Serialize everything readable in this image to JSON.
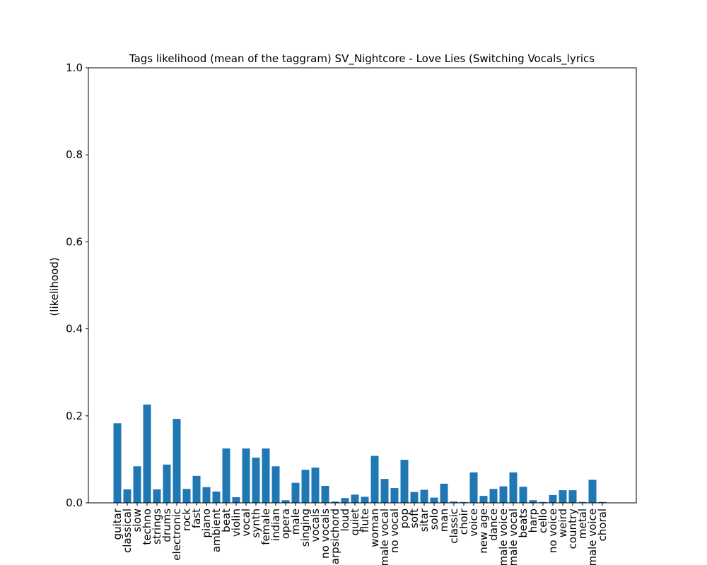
{
  "chart_data": {
    "type": "bar",
    "title": "Tags likelihood (mean of the taggram) SV_Nightcore - Love Lies (Switching Vocals_lyrics",
    "xlabel": "",
    "ylabel": "(likelihood)",
    "ylim": [
      0,
      1
    ],
    "yticks": [
      "0.0",
      "0.2",
      "0.4",
      "0.6",
      "0.8",
      "1.0"
    ],
    "grid": false,
    "bar_color": "#1f77b4",
    "categories": [
      "guitar",
      "classical",
      "slow",
      "techno",
      "strings",
      "drums",
      "electronic",
      "rock",
      "fast",
      "piano",
      "ambient",
      "beat",
      "violin",
      "vocal",
      "synth",
      "female",
      "indian",
      "opera",
      "male",
      "singing",
      "vocals",
      "no vocals",
      "harpsichord",
      "loud",
      "quiet",
      "flute",
      "woman",
      "male vocal",
      "no vocal",
      "pop",
      "soft",
      "sitar",
      "solo",
      "man",
      "classic",
      "choir",
      "voice",
      "new age",
      "dance",
      "male voice",
      "female vocal",
      "beats",
      "harp",
      "cello",
      "no voice",
      "weird",
      "country",
      "metal",
      "female voice",
      "choral"
    ],
    "values": [
      0.183,
      0.031,
      0.084,
      0.226,
      0.031,
      0.088,
      0.193,
      0.032,
      0.062,
      0.036,
      0.026,
      0.125,
      0.013,
      0.125,
      0.104,
      0.125,
      0.084,
      0.006,
      0.046,
      0.076,
      0.081,
      0.039,
      0.003,
      0.011,
      0.019,
      0.014,
      0.108,
      0.055,
      0.034,
      0.099,
      0.025,
      0.03,
      0.012,
      0.044,
      0.003,
      0.002,
      0.07,
      0.016,
      0.032,
      0.038,
      0.07,
      0.037,
      0.006,
      0.002,
      0.018,
      0.029,
      0.029,
      0.002,
      0.053,
      0.002
    ]
  }
}
